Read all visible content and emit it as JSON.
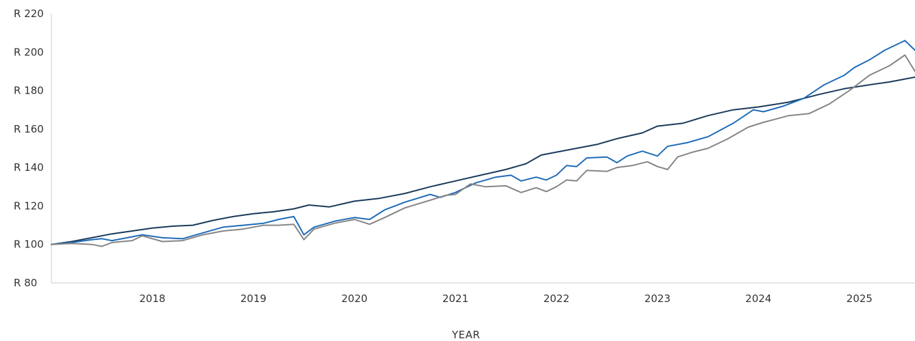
{
  "chart_data": {
    "type": "line",
    "title": "",
    "xlabel": "YEAR",
    "ylabel": "",
    "x_ticks": [
      "2018",
      "2019",
      "2020",
      "2021",
      "2022",
      "2023",
      "2024",
      "2025"
    ],
    "y_tick_values": [
      80,
      100,
      120,
      140,
      160,
      180,
      200,
      220
    ],
    "y_tick_labels": [
      "R 80",
      "R 100",
      "R 120",
      "R 140",
      "R 160",
      "R 180",
      "R 200",
      "R 220"
    ],
    "xlim": [
      2017.0,
      2025.55
    ],
    "ylim": [
      80,
      220
    ],
    "grid": false,
    "legend": "none",
    "series": [
      {
        "color": "#1a3a5c",
        "points": [
          [
            2017.0,
            100
          ],
          [
            2017.2,
            101.5
          ],
          [
            2017.4,
            103.5
          ],
          [
            2017.6,
            105.5
          ],
          [
            2017.8,
            107
          ],
          [
            2018.0,
            108.5
          ],
          [
            2018.2,
            109.5
          ],
          [
            2018.4,
            110
          ],
          [
            2018.6,
            112.5
          ],
          [
            2018.8,
            114.5
          ],
          [
            2019.0,
            116
          ],
          [
            2019.2,
            117
          ],
          [
            2019.4,
            118.5
          ],
          [
            2019.55,
            120.5
          ],
          [
            2019.75,
            119.5
          ],
          [
            2020.0,
            122.5
          ],
          [
            2020.25,
            124
          ],
          [
            2020.5,
            126.5
          ],
          [
            2020.75,
            130
          ],
          [
            2021.0,
            133
          ],
          [
            2021.25,
            136
          ],
          [
            2021.5,
            139
          ],
          [
            2021.7,
            142
          ],
          [
            2021.85,
            146.5
          ],
          [
            2022.0,
            148
          ],
          [
            2022.2,
            150
          ],
          [
            2022.4,
            152
          ],
          [
            2022.6,
            155
          ],
          [
            2022.85,
            158
          ],
          [
            2023.0,
            161.5
          ],
          [
            2023.25,
            163
          ],
          [
            2023.5,
            167
          ],
          [
            2023.75,
            170
          ],
          [
            2024.0,
            171.5
          ],
          [
            2024.3,
            174
          ],
          [
            2024.6,
            178
          ],
          [
            2024.85,
            181
          ],
          [
            2025.1,
            183
          ],
          [
            2025.3,
            184.5
          ],
          [
            2025.55,
            187
          ]
        ]
      },
      {
        "color": "#1e6bb8",
        "points": [
          [
            2017.0,
            100
          ],
          [
            2017.2,
            101
          ],
          [
            2017.4,
            102.5
          ],
          [
            2017.5,
            103
          ],
          [
            2017.6,
            102
          ],
          [
            2017.8,
            104
          ],
          [
            2017.9,
            105
          ],
          [
            2018.1,
            103.5
          ],
          [
            2018.3,
            103
          ],
          [
            2018.5,
            106
          ],
          [
            2018.7,
            109
          ],
          [
            2018.9,
            110
          ],
          [
            2019.1,
            111
          ],
          [
            2019.25,
            113
          ],
          [
            2019.4,
            114.5
          ],
          [
            2019.5,
            105
          ],
          [
            2019.6,
            109
          ],
          [
            2019.8,
            112
          ],
          [
            2020.0,
            114
          ],
          [
            2020.15,
            113
          ],
          [
            2020.3,
            118
          ],
          [
            2020.5,
            122
          ],
          [
            2020.75,
            126
          ],
          [
            2020.85,
            124.5
          ],
          [
            2021.0,
            127
          ],
          [
            2021.2,
            132
          ],
          [
            2021.4,
            135
          ],
          [
            2021.55,
            136
          ],
          [
            2021.65,
            133
          ],
          [
            2021.8,
            135
          ],
          [
            2021.9,
            133.5
          ],
          [
            2022.0,
            136
          ],
          [
            2022.1,
            141
          ],
          [
            2022.2,
            140.5
          ],
          [
            2022.3,
            145
          ],
          [
            2022.5,
            145.5
          ],
          [
            2022.6,
            142.5
          ],
          [
            2022.7,
            146
          ],
          [
            2022.85,
            148.5
          ],
          [
            2023.0,
            146
          ],
          [
            2023.1,
            151
          ],
          [
            2023.3,
            153
          ],
          [
            2023.5,
            156
          ],
          [
            2023.75,
            163
          ],
          [
            2023.95,
            170
          ],
          [
            2024.05,
            169
          ],
          [
            2024.25,
            172
          ],
          [
            2024.45,
            176
          ],
          [
            2024.65,
            183
          ],
          [
            2024.85,
            188
          ],
          [
            2024.95,
            192
          ],
          [
            2025.1,
            196
          ],
          [
            2025.25,
            201
          ],
          [
            2025.45,
            206
          ],
          [
            2025.55,
            201
          ]
        ]
      },
      {
        "color": "#858585",
        "points": [
          [
            2017.0,
            100
          ],
          [
            2017.2,
            100.5
          ],
          [
            2017.4,
            100
          ],
          [
            2017.5,
            99
          ],
          [
            2017.6,
            101
          ],
          [
            2017.8,
            102
          ],
          [
            2017.9,
            104.5
          ],
          [
            2018.1,
            101.5
          ],
          [
            2018.3,
            102
          ],
          [
            2018.5,
            105
          ],
          [
            2018.7,
            107
          ],
          [
            2018.9,
            108
          ],
          [
            2019.1,
            110
          ],
          [
            2019.25,
            110
          ],
          [
            2019.4,
            110.5
          ],
          [
            2019.5,
            102.5
          ],
          [
            2019.6,
            108
          ],
          [
            2019.8,
            111
          ],
          [
            2020.0,
            113
          ],
          [
            2020.15,
            110.5
          ],
          [
            2020.3,
            114
          ],
          [
            2020.5,
            119
          ],
          [
            2020.75,
            123
          ],
          [
            2020.9,
            125.5
          ],
          [
            2021.0,
            126
          ],
          [
            2021.15,
            131.5
          ],
          [
            2021.3,
            130
          ],
          [
            2021.5,
            130.5
          ],
          [
            2021.65,
            127
          ],
          [
            2021.8,
            129.5
          ],
          [
            2021.9,
            127.5
          ],
          [
            2022.0,
            130
          ],
          [
            2022.1,
            133.5
          ],
          [
            2022.2,
            133
          ],
          [
            2022.3,
            138.5
          ],
          [
            2022.5,
            138
          ],
          [
            2022.6,
            140
          ],
          [
            2022.75,
            141
          ],
          [
            2022.9,
            143
          ],
          [
            2023.0,
            140.5
          ],
          [
            2023.1,
            139
          ],
          [
            2023.2,
            145.5
          ],
          [
            2023.35,
            148
          ],
          [
            2023.5,
            150
          ],
          [
            2023.7,
            155
          ],
          [
            2023.9,
            161
          ],
          [
            2024.05,
            163.5
          ],
          [
            2024.3,
            167
          ],
          [
            2024.5,
            168
          ],
          [
            2024.7,
            173
          ],
          [
            2024.9,
            180
          ],
          [
            2025.1,
            188
          ],
          [
            2025.3,
            193
          ],
          [
            2025.45,
            198.5
          ],
          [
            2025.55,
            190
          ]
        ]
      }
    ]
  }
}
